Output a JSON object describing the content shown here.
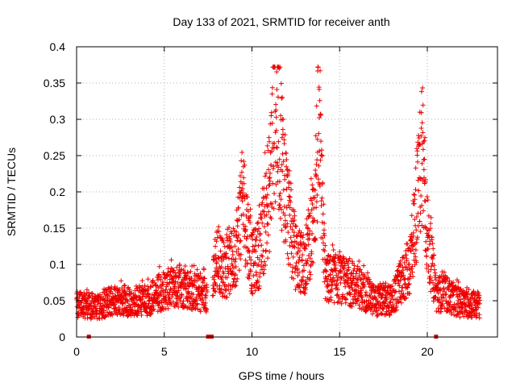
{
  "chart_data": {
    "type": "scatter",
    "title": "Day 133 of 2021, SRMTID for receiver anth",
    "xlabel": "GPS time / hours",
    "ylabel": "SRMTID / TECUs",
    "xlim": [
      0,
      24
    ],
    "ylim": [
      0,
      0.4
    ],
    "xticks": [
      0,
      5,
      10,
      15,
      20
    ],
    "xtick_labels": [
      "0",
      "5",
      "10",
      "15",
      "20"
    ],
    "yticks": [
      0,
      0.05,
      0.1,
      0.15,
      0.2,
      0.25,
      0.3,
      0.35,
      0.4
    ],
    "ytick_labels": [
      "0",
      "0.05",
      "0.1",
      "0.15",
      "0.2",
      "0.25",
      "0.3",
      "0.35",
      "0.4"
    ],
    "grid": true,
    "marker": "+",
    "color": "#ee0000",
    "series_envelope": [
      {
        "x": 0.0,
        "y": 0.045
      },
      {
        "x": 1.0,
        "y": 0.04
      },
      {
        "x": 2.0,
        "y": 0.05
      },
      {
        "x": 3.0,
        "y": 0.05
      },
      {
        "x": 4.0,
        "y": 0.05
      },
      {
        "x": 5.0,
        "y": 0.065
      },
      {
        "x": 6.0,
        "y": 0.07
      },
      {
        "x": 7.0,
        "y": 0.06
      },
      {
        "x": 7.7,
        "y": 0.06
      },
      {
        "x": 8.0,
        "y": 0.11
      },
      {
        "x": 8.5,
        "y": 0.09
      },
      {
        "x": 9.0,
        "y": 0.11
      },
      {
        "x": 9.5,
        "y": 0.19
      },
      {
        "x": 10.0,
        "y": 0.1
      },
      {
        "x": 10.5,
        "y": 0.12
      },
      {
        "x": 11.0,
        "y": 0.2
      },
      {
        "x": 11.3,
        "y": 0.32
      },
      {
        "x": 11.6,
        "y": 0.28
      },
      {
        "x": 12.0,
        "y": 0.18
      },
      {
        "x": 12.5,
        "y": 0.11
      },
      {
        "x": 13.0,
        "y": 0.1
      },
      {
        "x": 13.5,
        "y": 0.16
      },
      {
        "x": 13.8,
        "y": 0.28
      },
      {
        "x": 14.2,
        "y": 0.08
      },
      {
        "x": 15.0,
        "y": 0.08
      },
      {
        "x": 16.0,
        "y": 0.07
      },
      {
        "x": 17.0,
        "y": 0.05
      },
      {
        "x": 18.0,
        "y": 0.05
      },
      {
        "x": 19.0,
        "y": 0.1
      },
      {
        "x": 19.5,
        "y": 0.2
      },
      {
        "x": 19.7,
        "y": 0.27
      },
      {
        "x": 20.0,
        "y": 0.14
      },
      {
        "x": 20.5,
        "y": 0.06
      },
      {
        "x": 21.0,
        "y": 0.06
      },
      {
        "x": 22.0,
        "y": 0.045
      },
      {
        "x": 23.0,
        "y": 0.045
      }
    ],
    "gap_markers_x": [
      0.7,
      7.5,
      7.7,
      20.5
    ]
  }
}
